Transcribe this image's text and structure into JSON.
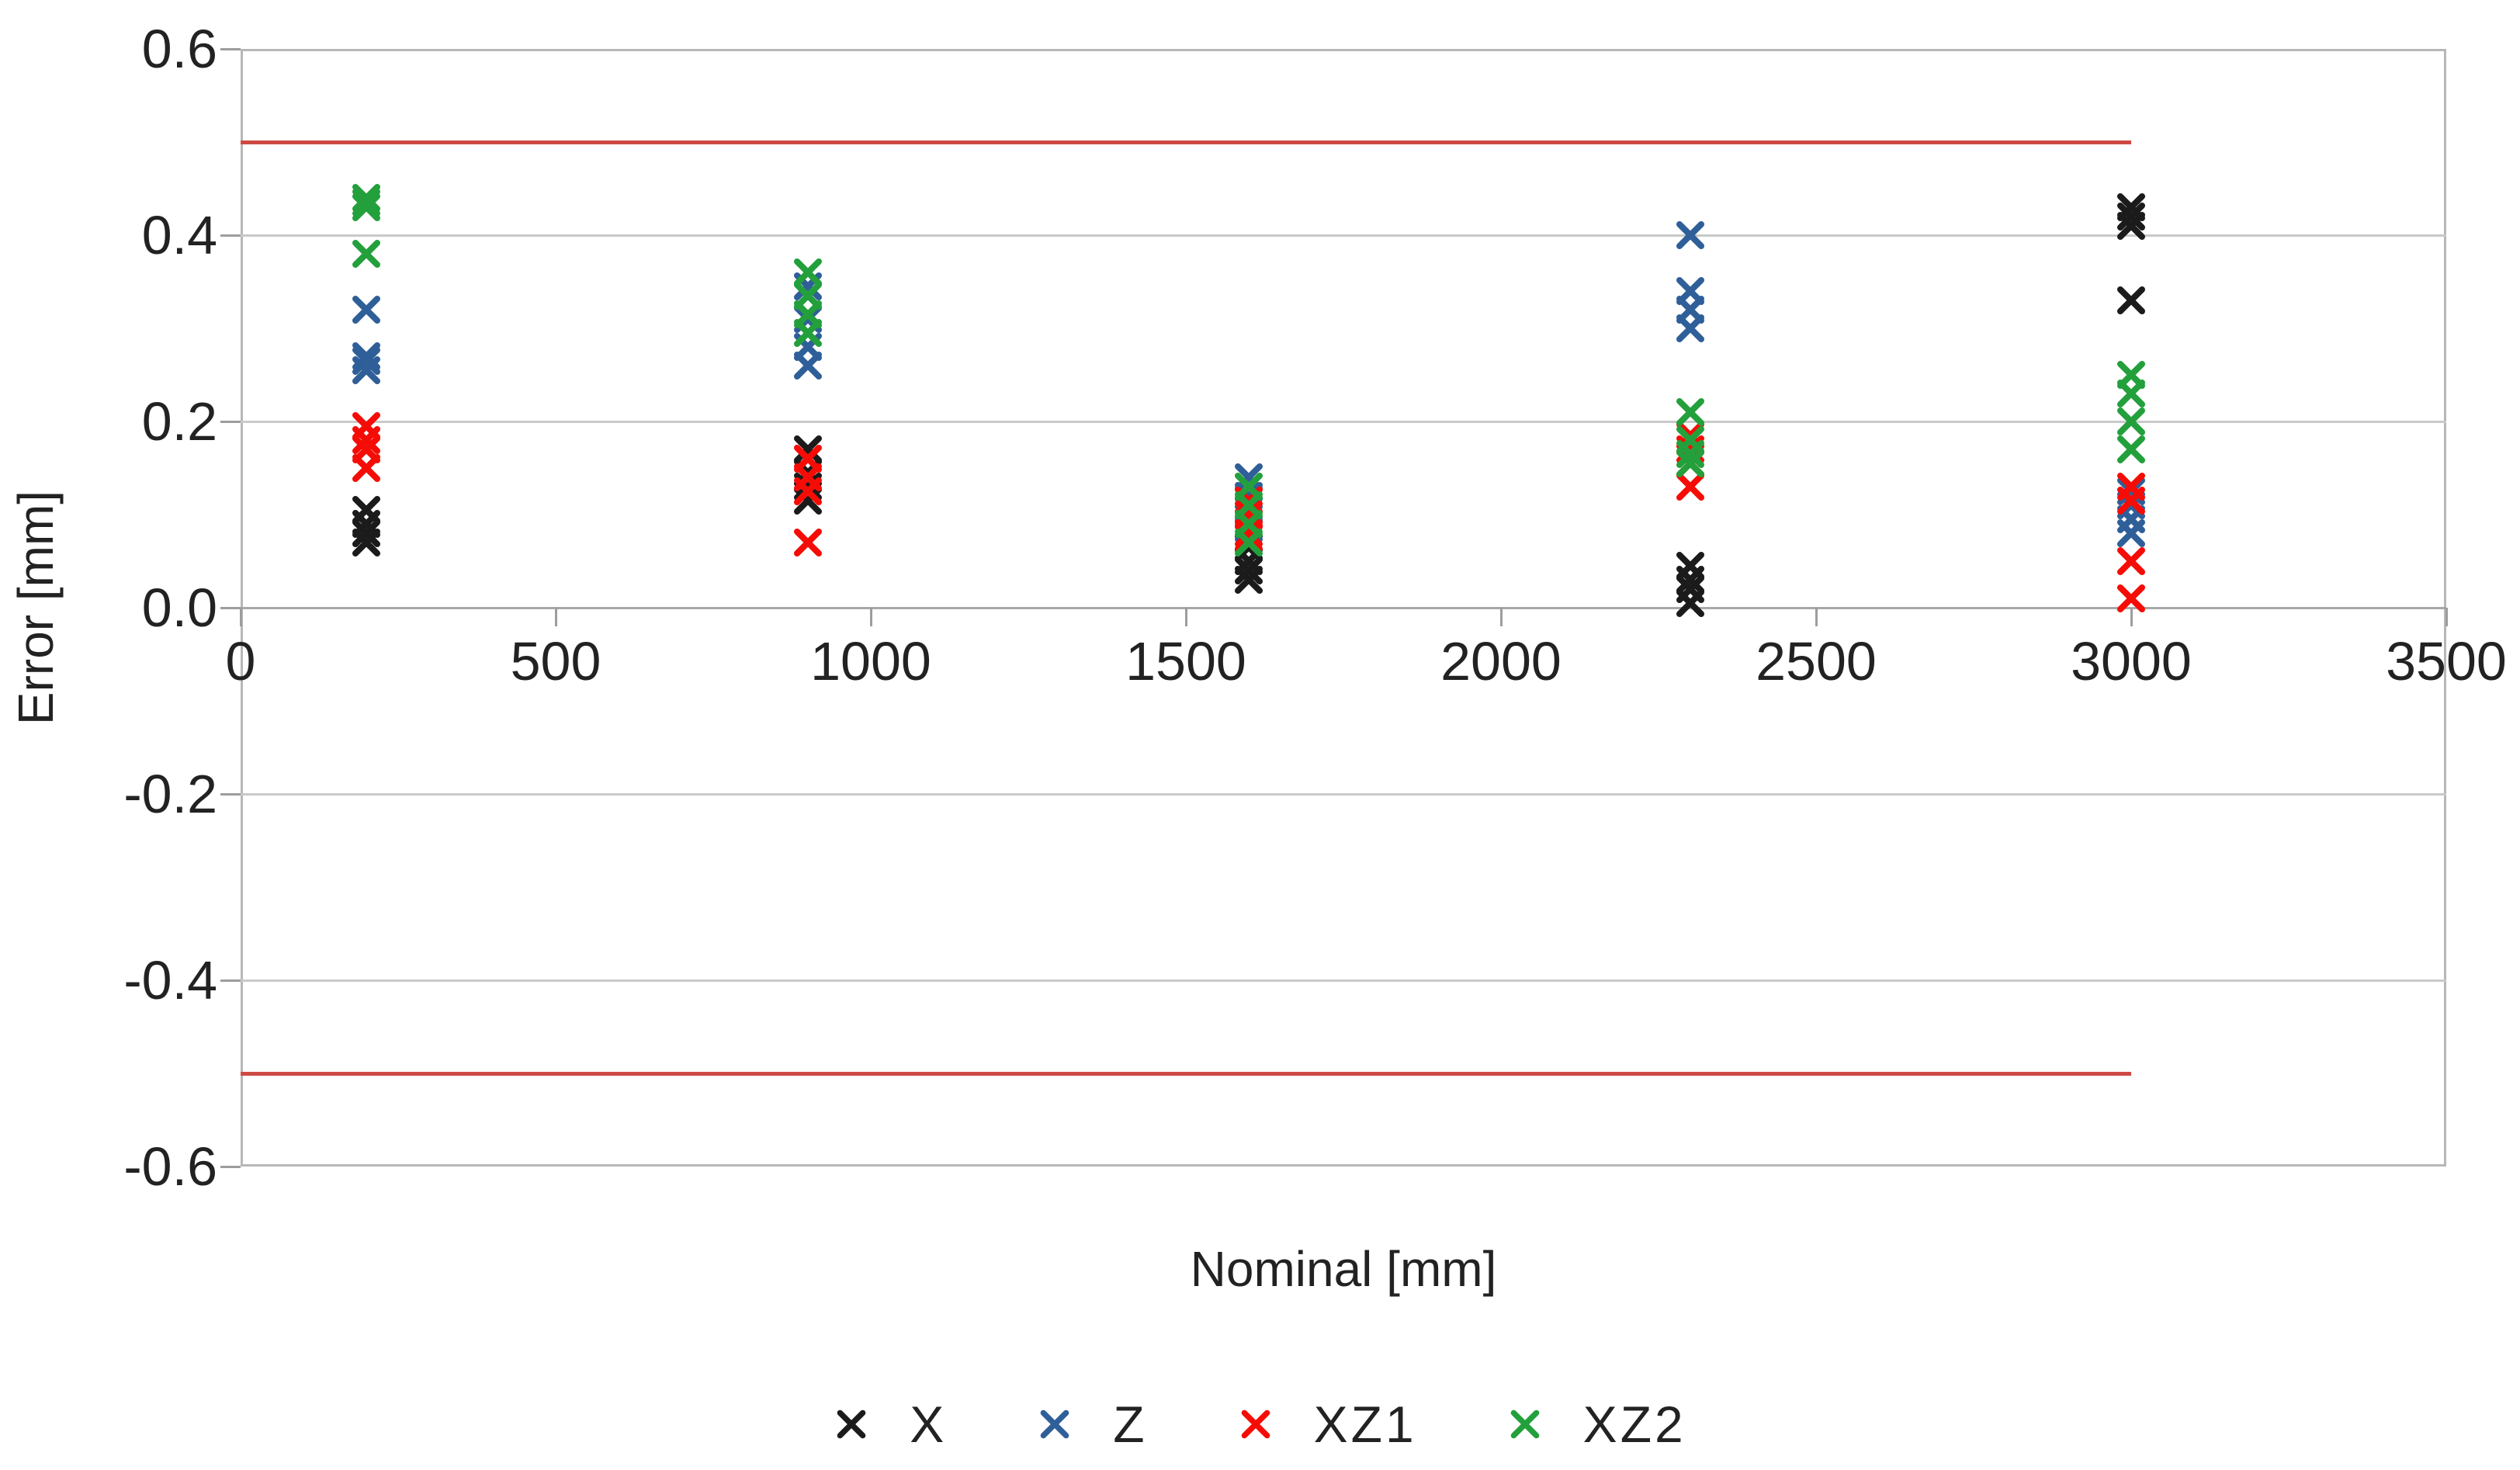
{
  "chart_data": {
    "type": "scatter",
    "title": "",
    "xlabel": "Nominal [mm]",
    "ylabel": "Error [mm]",
    "xlim": [
      0,
      3500
    ],
    "ylim": [
      -0.6,
      0.6
    ],
    "x_ticks": [
      0,
      500,
      1000,
      1500,
      2000,
      2500,
      3000,
      3500
    ],
    "y_ticks": [
      0.6,
      0.4,
      0.2,
      0.0,
      -0.2,
      -0.4,
      -0.6
    ],
    "grid": "horizontal",
    "legend_position": "bottom",
    "marker_symbol": "x",
    "limit_lines": {
      "color": "#cf4a44",
      "x_range": [
        0,
        3000
      ],
      "values": [
        0.5,
        -0.5
      ]
    },
    "series": [
      {
        "name": "X",
        "color": "#1b1b1b",
        "points": [
          [
            200,
            0.105
          ],
          [
            200,
            0.09
          ],
          [
            200,
            0.08
          ],
          [
            200,
            0.07
          ],
          [
            900,
            0.17
          ],
          [
            900,
            0.145
          ],
          [
            900,
            0.13
          ],
          [
            900,
            0.115
          ],
          [
            1600,
            0.065
          ],
          [
            1600,
            0.05
          ],
          [
            1600,
            0.04
          ],
          [
            1600,
            0.03
          ],
          [
            2300,
            0.045
          ],
          [
            2300,
            0.03
          ],
          [
            2300,
            0.02
          ],
          [
            2300,
            0.005
          ],
          [
            3000,
            0.43
          ],
          [
            3000,
            0.42
          ],
          [
            3000,
            0.41
          ],
          [
            3000,
            0.33
          ]
        ]
      },
      {
        "name": "Z",
        "color": "#2f5f99",
        "points": [
          [
            200,
            0.32
          ],
          [
            200,
            0.27
          ],
          [
            200,
            0.265
          ],
          [
            200,
            0.255
          ],
          [
            900,
            0.345
          ],
          [
            900,
            0.31
          ],
          [
            900,
            0.28
          ],
          [
            900,
            0.26
          ],
          [
            1600,
            0.14
          ],
          [
            1600,
            0.12
          ],
          [
            1600,
            0.105
          ],
          [
            1600,
            0.085
          ],
          [
            2300,
            0.4
          ],
          [
            2300,
            0.34
          ],
          [
            2300,
            0.32
          ],
          [
            2300,
            0.3
          ],
          [
            3000,
            0.125
          ],
          [
            3000,
            0.11
          ],
          [
            3000,
            0.095
          ],
          [
            3000,
            0.08
          ]
        ]
      },
      {
        "name": "XZ1",
        "color": "#f60c06",
        "points": [
          [
            200,
            0.195
          ],
          [
            200,
            0.18
          ],
          [
            200,
            0.17
          ],
          [
            200,
            0.15
          ],
          [
            900,
            0.16
          ],
          [
            900,
            0.14
          ],
          [
            900,
            0.125
          ],
          [
            900,
            0.07
          ],
          [
            1600,
            0.115
          ],
          [
            1600,
            0.1
          ],
          [
            1600,
            0.08
          ],
          [
            1600,
            0.075
          ],
          [
            2300,
            0.185
          ],
          [
            2300,
            0.17
          ],
          [
            2300,
            0.155
          ],
          [
            2300,
            0.13
          ],
          [
            3000,
            0.13
          ],
          [
            3000,
            0.115
          ],
          [
            3000,
            0.05
          ],
          [
            3000,
            0.01
          ]
        ]
      },
      {
        "name": "XZ2",
        "color": "#23a03c",
        "points": [
          [
            200,
            0.44
          ],
          [
            200,
            0.435
          ],
          [
            200,
            0.43
          ],
          [
            200,
            0.38
          ],
          [
            900,
            0.36
          ],
          [
            900,
            0.335
          ],
          [
            900,
            0.315
          ],
          [
            900,
            0.295
          ],
          [
            1600,
            0.13
          ],
          [
            1600,
            0.11
          ],
          [
            1600,
            0.09
          ],
          [
            1600,
            0.07
          ],
          [
            2300,
            0.21
          ],
          [
            2300,
            0.18
          ],
          [
            2300,
            0.165
          ],
          [
            2300,
            0.155
          ],
          [
            3000,
            0.25
          ],
          [
            3000,
            0.23
          ],
          [
            3000,
            0.2
          ],
          [
            3000,
            0.17
          ]
        ]
      }
    ]
  }
}
